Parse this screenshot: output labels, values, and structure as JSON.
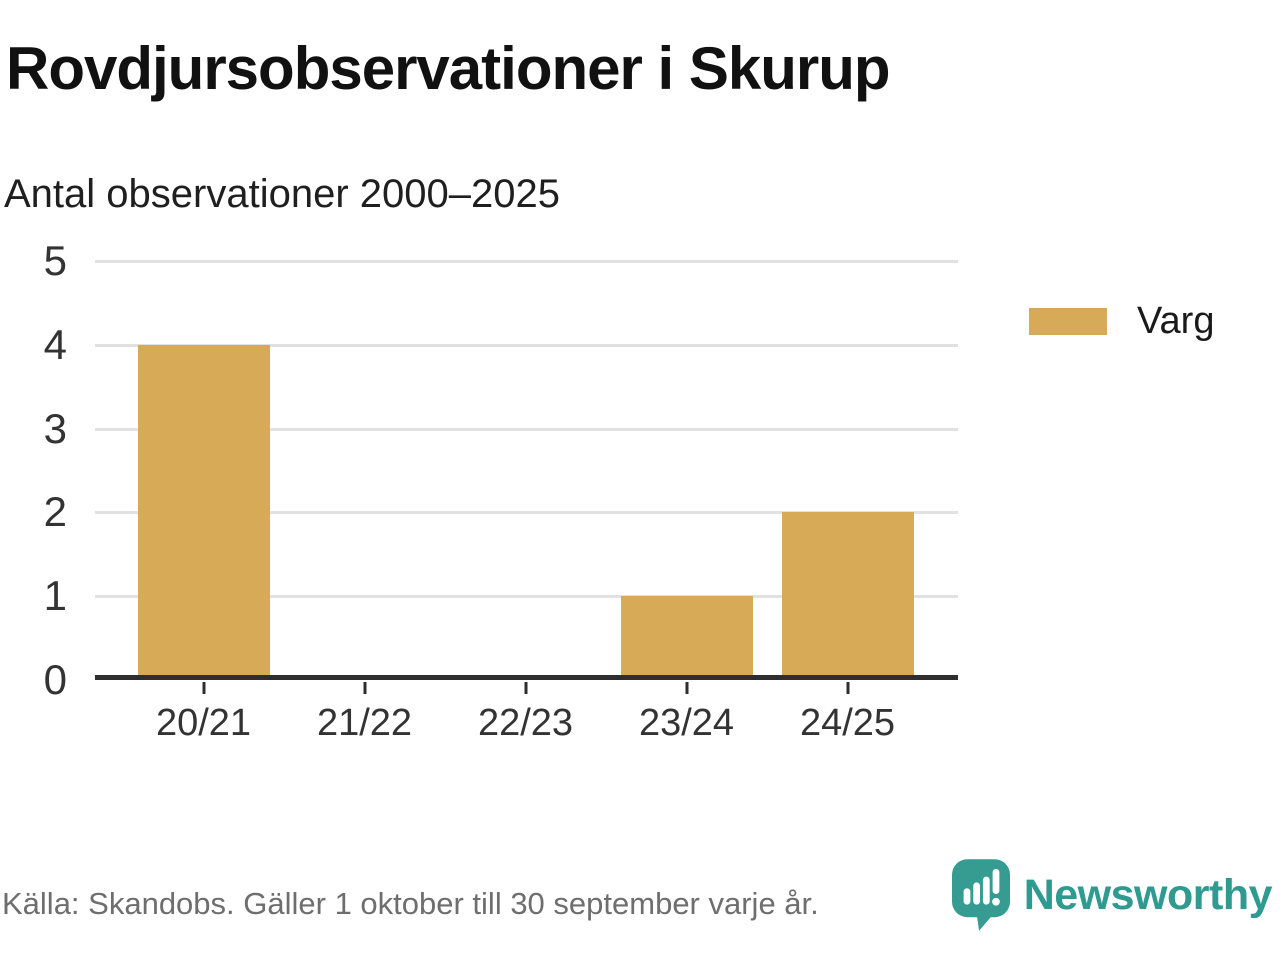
{
  "header": {
    "title": "Rovdjursobservationer i Skurup",
    "subtitle": "Antal observationer 2000–2025"
  },
  "chart_data": {
    "type": "bar",
    "title": "Rovdjursobservationer i Skurup",
    "subtitle": "Antal observationer 2000–2025",
    "categories": [
      "20/21",
      "21/22",
      "22/23",
      "23/24",
      "24/25"
    ],
    "series": [
      {
        "name": "Varg",
        "values": [
          4,
          0,
          0,
          1,
          2
        ],
        "color": "#d7aa58"
      }
    ],
    "ylabel": "",
    "xlabel": "",
    "ylim": [
      0,
      5
    ],
    "yticks": [
      0,
      1,
      2,
      3,
      4,
      5
    ],
    "grid": "horizontal",
    "legend_position": "right"
  },
  "legend": {
    "label": "Varg",
    "color": "#d7aa58"
  },
  "footer": {
    "source": "Källa: Skandobs. Gäller 1 oktober till 30 september varje år.",
    "brand": "Newsworthy"
  },
  "colors": {
    "bar": "#d7aa58",
    "gridline": "#e1e1e1",
    "axis": "#2e2e2e",
    "text": "#333333",
    "source_text": "#6e6e6e",
    "brand_teal": "#2f9a90"
  }
}
